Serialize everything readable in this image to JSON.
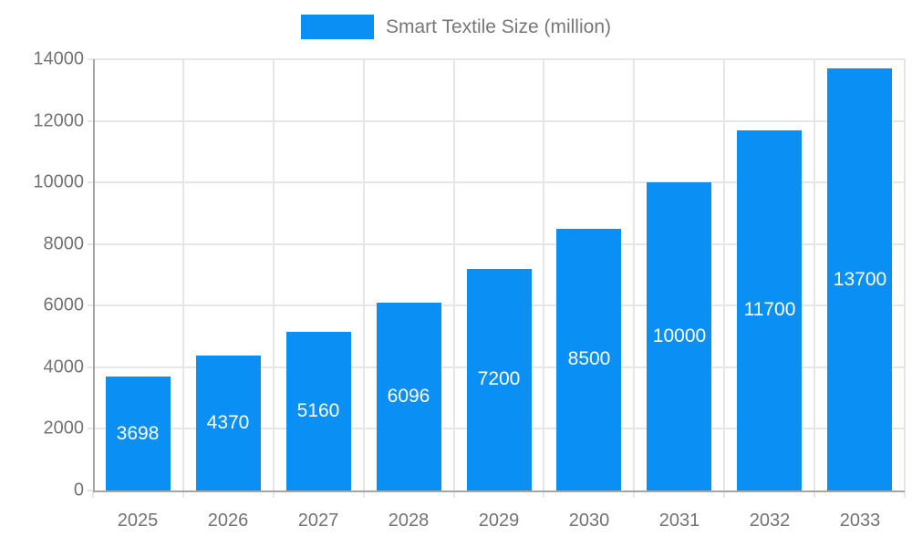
{
  "legend": {
    "label": "Smart Textile Size (million)"
  },
  "chart_data": {
    "type": "bar",
    "title": "",
    "categories": [
      "2025",
      "2026",
      "2027",
      "2028",
      "2029",
      "2030",
      "2031",
      "2032",
      "2033"
    ],
    "values": [
      3698,
      4370,
      5160,
      6096,
      7200,
      8500,
      10000,
      11700,
      13700
    ],
    "series_name": "Smart Textile Size (million)",
    "xlabel": "",
    "ylabel": "",
    "ylim": [
      0,
      14000
    ],
    "yticks": [
      0,
      2000,
      4000,
      6000,
      8000,
      10000,
      12000,
      14000
    ],
    "grid": true,
    "legend_position": "top",
    "value_labels": "inside-center-white"
  },
  "colors": {
    "bar": "#0a90f5",
    "grid": "#e6e6e6",
    "axis": "#a6a6a6",
    "tick_text": "#737373",
    "legend_text": "#777777",
    "value_label": "#ffffff",
    "background": "#ffffff"
  }
}
